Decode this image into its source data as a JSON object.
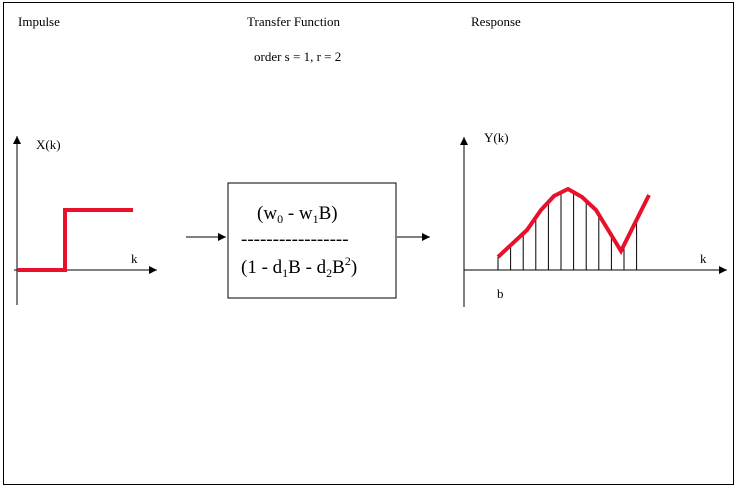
{
  "header": {
    "impulse_title": "Impulse",
    "transfer_title": "Transfer Function",
    "order_text": "order s = 1, r = 2",
    "response_title": "Response"
  },
  "impulse_plot": {
    "y_label": "X(k)",
    "x_label": "k"
  },
  "transfer_box": {
    "numerator": {
      "w0": "(w",
      "w0_sub": "0",
      "minus": " - w",
      "w1_sub": "1",
      "tail": "B)"
    },
    "divider": "-----------------",
    "denominator": {
      "a": "(1 - d",
      "d1_sub": "1",
      "b": "B - d",
      "d2_sub": "2",
      "c": "B",
      "sq": "2",
      "d": ")"
    }
  },
  "response_plot": {
    "y_label": "Y(k)",
    "x_label": "k",
    "b_label": "b"
  },
  "colors": {
    "signal": "#e8102a",
    "ink": "#000000"
  }
}
